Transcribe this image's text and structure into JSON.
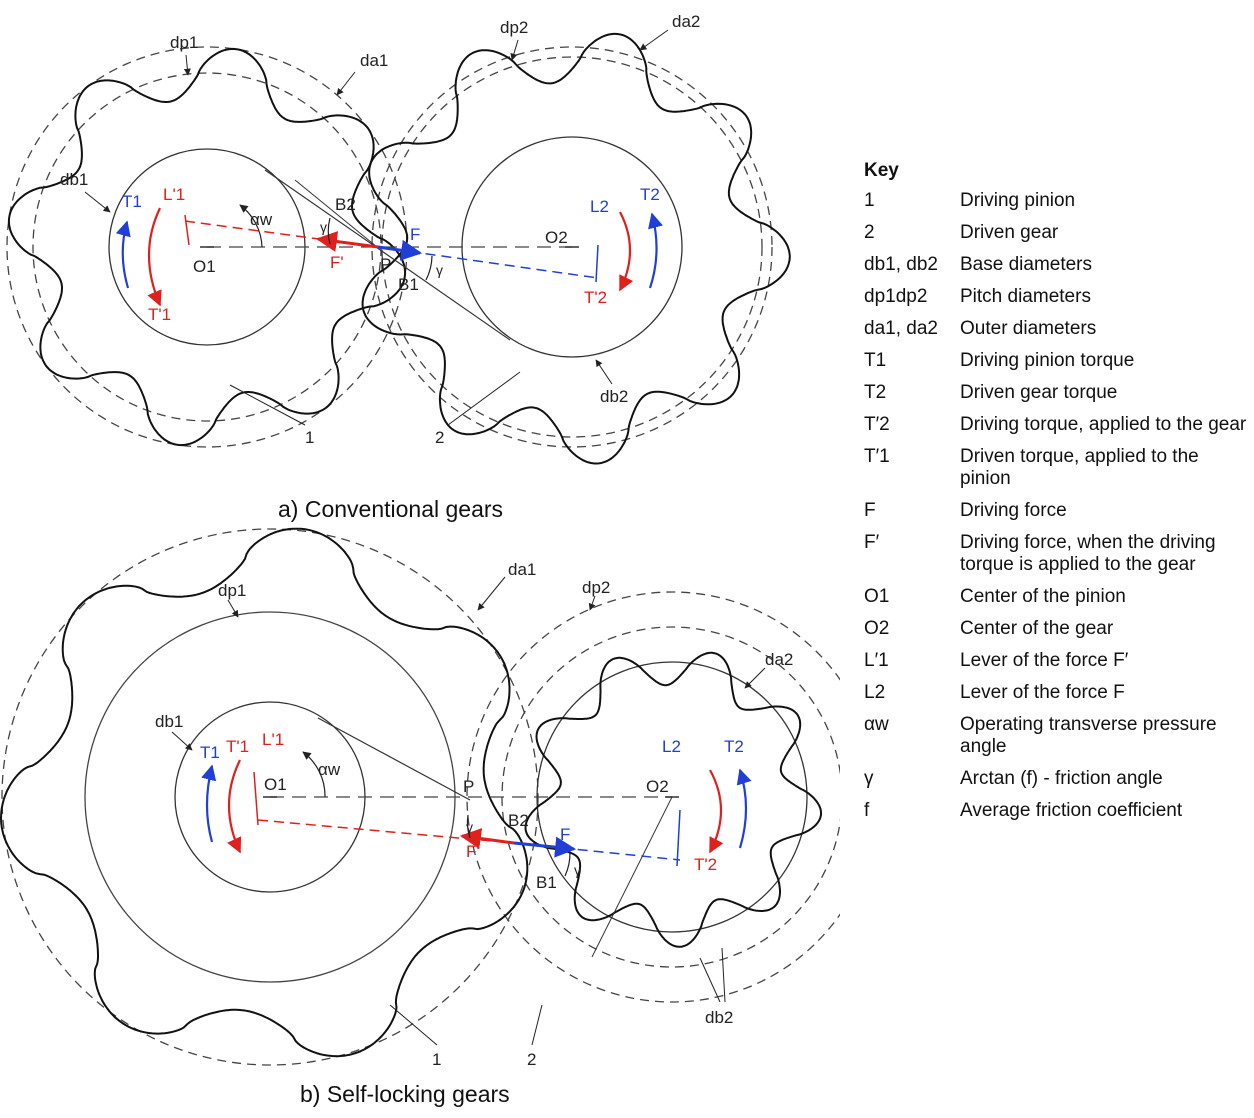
{
  "diagram_a": {
    "caption": "a)  Conventional gears",
    "labels": {
      "dp1": "dp1",
      "da1": "da1",
      "db1": "db1",
      "dp2": "dp2",
      "da2": "da2",
      "db2": "db2",
      "O1": "O1",
      "O2": "O2",
      "P": "P",
      "B1": "B1",
      "B2": "B2",
      "alpha_w": "αw",
      "gamma": "γ",
      "gamma2": "γ",
      "T1": "T1",
      "T2": "T2",
      "Tp1": "T'1",
      "Tp2": "T'2",
      "Lp1": "L'1",
      "L2": "L2",
      "F": "F",
      "Fp": "F'",
      "n1": "1",
      "n2": "2"
    }
  },
  "diagram_b": {
    "caption": "b)  Self-locking gears",
    "labels": {
      "dp1": "dp1",
      "da1": "da1",
      "db1": "db1",
      "dp2": "dp2",
      "da2": "da2",
      "db2": "db2",
      "O1": "O1",
      "O2": "O2",
      "P": "P",
      "B1": "B1",
      "B2": "B2",
      "alpha_w": "αw",
      "gamma": "γ",
      "gamma2": "γ",
      "T1": "T1",
      "T2": "T2",
      "Tp1": "T'1",
      "Tp2": "T'2",
      "Lp1": "L'1",
      "L2": "L2",
      "F": "F",
      "Fp": "F'",
      "n1": "1",
      "n2": "2"
    }
  },
  "key": {
    "title": "Key",
    "items": [
      {
        "sym": "1",
        "desc": "Driving pinion"
      },
      {
        "sym": "2",
        "desc": "Driven gear"
      },
      {
        "sym": "db1, db2",
        "desc": "Base diameters"
      },
      {
        "sym": "dp1dp2",
        "desc": "Pitch diameters"
      },
      {
        "sym": "da1, da2",
        "desc": "Outer diameters"
      },
      {
        "sym": "T1",
        "desc": "Driving pinion torque"
      },
      {
        "sym": "T2",
        "desc": "Driven gear torque"
      },
      {
        "sym": "T′2",
        "desc": "Driving torque, applied to the gear"
      },
      {
        "sym": "T′1",
        "desc": "Driven torque, applied to the pinion"
      },
      {
        "sym": "F",
        "desc": "Driving force"
      },
      {
        "sym": "F′",
        "desc": "Driving force, when the driving torque is applied to the gear"
      },
      {
        "sym": "O1",
        "desc": "Center of the pinion"
      },
      {
        "sym": "O2",
        "desc": "Center of the gear"
      },
      {
        "sym": "L′1",
        "desc": "Lever of the force F′"
      },
      {
        "sym": "L2",
        "desc": "Lever of the force F"
      },
      {
        "sym": "αw",
        "desc": "Operating transverse pressure angle"
      },
      {
        "sym": "γ",
        "desc": "Arctan (f) - friction angle"
      },
      {
        "sym": "f",
        "desc": "Average friction coefficient"
      }
    ]
  },
  "colors": {
    "blue": "#1f3fd6",
    "red": "#e0201c",
    "line": "#222222"
  }
}
